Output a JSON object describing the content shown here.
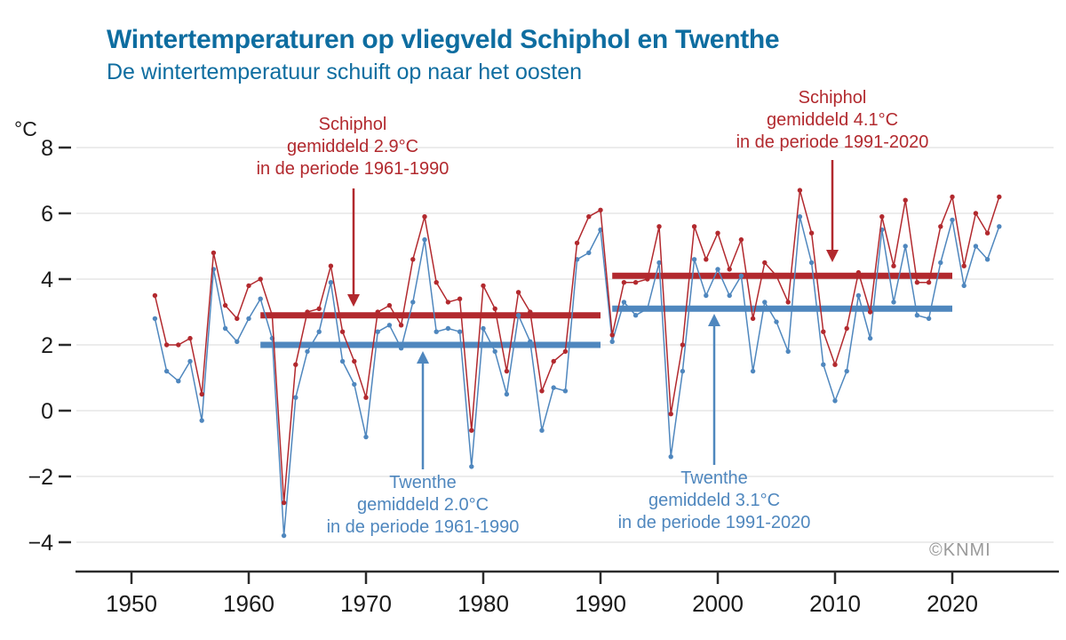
{
  "header": {
    "title": "Wintertemperaturen op vliegveld Schiphol en Twenthe",
    "subtitle": "De wintertemperatuur schuift op naar het oosten"
  },
  "copyright": "©KNMI",
  "colors": {
    "schiphol": "#b2292e",
    "twenthe": "#4f87be",
    "heading": "#0e6da0",
    "axis": "#2b2b2b",
    "tick_text": "#1a1a1a",
    "grid": "#e6e6e6"
  },
  "y_axis": {
    "unit": "°C",
    "ticks": [
      8,
      6,
      4,
      2,
      0,
      -2,
      -4
    ],
    "tick_labels": [
      "8",
      "6",
      "4",
      "2",
      "0",
      "−2",
      "−4"
    ]
  },
  "x_axis": {
    "ticks": [
      1950,
      1960,
      1970,
      1980,
      1990,
      2000,
      2010,
      2020
    ]
  },
  "annotations": [
    {
      "id": "schiphol-1961-1990",
      "series": "Schiphol",
      "lines": [
        "Schiphol",
        "gemiddeld 2.9°C",
        "in de periode 1961-1990"
      ]
    },
    {
      "id": "schiphol-1991-2020",
      "series": "Schiphol",
      "lines": [
        "Schiphol",
        "gemiddeld 4.1°C",
        "in de periode 1991-2020"
      ]
    },
    {
      "id": "twenthe-1961-1990",
      "series": "Twenthe",
      "lines": [
        "Twenthe",
        "gemiddeld 2.0°C",
        "in de periode 1961-1990"
      ]
    },
    {
      "id": "twenthe-1991-2020",
      "series": "Twenthe",
      "lines": [
        "Twenthe",
        "gemiddeld 3.1°C",
        "in de periode 1991-2020"
      ]
    }
  ],
  "chart_data": {
    "type": "line",
    "title": "Wintertemperaturen op vliegveld Schiphol en Twenthe",
    "xlabel": "",
    "ylabel": "°C",
    "xlim": [
      1946,
      2028
    ],
    "ylim": [
      -4.9,
      8.5
    ],
    "grid": "horizontal",
    "x": [
      1952,
      1953,
      1954,
      1955,
      1956,
      1957,
      1958,
      1959,
      1960,
      1961,
      1962,
      1963,
      1964,
      1965,
      1966,
      1967,
      1968,
      1969,
      1970,
      1971,
      1972,
      1973,
      1974,
      1975,
      1976,
      1977,
      1978,
      1979,
      1980,
      1981,
      1982,
      1983,
      1984,
      1985,
      1986,
      1987,
      1988,
      1989,
      1990,
      1991,
      1992,
      1993,
      1994,
      1995,
      1996,
      1997,
      1998,
      1999,
      2000,
      2001,
      2002,
      2003,
      2004,
      2005,
      2006,
      2007,
      2008,
      2009,
      2010,
      2011,
      2012,
      2013,
      2014,
      2015,
      2016,
      2017,
      2018,
      2019,
      2020,
      2021,
      2022,
      2023,
      2024
    ],
    "series": [
      {
        "name": "Schiphol",
        "color": "#b2292e",
        "values": [
          3.5,
          2.0,
          2.0,
          2.2,
          0.5,
          4.8,
          3.2,
          2.8,
          3.8,
          4.0,
          2.9,
          -2.8,
          1.4,
          3.0,
          3.1,
          4.4,
          2.4,
          1.5,
          0.4,
          3.0,
          3.2,
          2.6,
          4.6,
          5.9,
          3.9,
          3.3,
          3.4,
          -0.6,
          3.8,
          3.1,
          1.2,
          3.6,
          3.0,
          0.6,
          1.5,
          1.8,
          5.1,
          5.9,
          6.1,
          2.3,
          3.9,
          3.9,
          4.0,
          5.6,
          -0.1,
          2.0,
          5.6,
          4.6,
          5.4,
          4.3,
          5.2,
          2.8,
          4.5,
          4.1,
          3.3,
          6.7,
          5.4,
          2.4,
          1.4,
          2.5,
          4.2,
          3.0,
          5.9,
          4.4,
          6.4,
          3.9,
          3.9,
          5.6,
          6.5,
          4.4,
          6.0,
          5.4,
          6.5
        ]
      },
      {
        "name": "Twenthe",
        "color": "#4f87be",
        "values": [
          2.8,
          1.2,
          0.9,
          1.5,
          -0.3,
          4.3,
          2.5,
          2.1,
          2.8,
          3.4,
          2.2,
          -3.8,
          0.4,
          1.8,
          2.4,
          3.9,
          1.5,
          0.8,
          -0.8,
          2.4,
          2.6,
          1.9,
          3.3,
          5.2,
          2.4,
          2.5,
          2.4,
          -1.7,
          2.5,
          1.8,
          0.5,
          2.9,
          2.1,
          -0.6,
          0.7,
          0.6,
          4.6,
          4.8,
          5.5,
          2.1,
          3.3,
          2.9,
          3.1,
          4.5,
          -1.4,
          1.2,
          4.6,
          3.5,
          4.3,
          3.5,
          4.1,
          1.2,
          3.3,
          2.7,
          1.8,
          5.9,
          4.5,
          1.4,
          0.3,
          1.2,
          3.5,
          2.2,
          5.5,
          3.3,
          5.0,
          2.9,
          2.8,
          4.5,
          5.8,
          3.8,
          5.0,
          4.6,
          5.6
        ]
      }
    ],
    "mean_lines": [
      {
        "series": "Schiphol",
        "period": "1961-1990",
        "value": 2.9,
        "x_start": 1961,
        "x_end": 1990,
        "color": "#b2292e"
      },
      {
        "series": "Schiphol",
        "period": "1991-2020",
        "value": 4.1,
        "x_start": 1991,
        "x_end": 2020,
        "color": "#b2292e"
      },
      {
        "series": "Twenthe",
        "period": "1961-1990",
        "value": 2.0,
        "x_start": 1961,
        "x_end": 1990,
        "color": "#4f87be"
      },
      {
        "series": "Twenthe",
        "period": "1991-2020",
        "value": 3.1,
        "x_start": 1991,
        "x_end": 2020,
        "color": "#4f87be"
      }
    ],
    "legend": "none"
  }
}
